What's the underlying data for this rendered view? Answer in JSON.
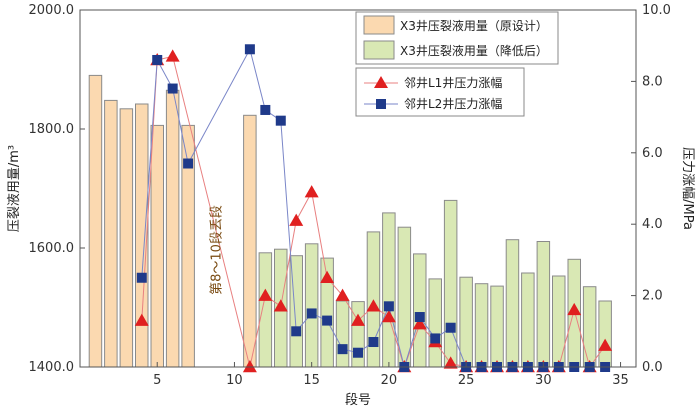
{
  "chart_data": {
    "type": "bar",
    "xlabel": "段号",
    "ylabel_left": "压裂液用量/m³",
    "ylabel_right": "压力涨幅/MPa",
    "x_range": [
      0,
      36
    ],
    "x_ticks": [
      5,
      10,
      15,
      20,
      25,
      30,
      35
    ],
    "x_tick_labels": [
      "5",
      "10",
      "15",
      "20",
      "25",
      "30",
      "35"
    ],
    "y_left_range": [
      1400,
      2000
    ],
    "y_left_ticks": [
      1400,
      1600,
      1800,
      2000
    ],
    "y_left_tick_labels": [
      "1400.0",
      "1600.0",
      "1800.0",
      "2000.0"
    ],
    "y_right_range": [
      0,
      10
    ],
    "y_right_ticks": [
      0,
      2,
      4,
      6,
      8,
      10
    ],
    "y_right_tick_labels": [
      "0.0",
      "2.0",
      "4.0",
      "6.0",
      "8.0",
      "10.0"
    ],
    "colors": {
      "original": "#fbd9b0",
      "reduced": "#d9e8b4",
      "bar_stroke": "#8a8a8a",
      "L1": "#e02020",
      "L1_line": "#e88080",
      "L2": "#1f3a8a",
      "L2_line": "#7a86c8"
    },
    "series": [
      {
        "name": "X3井压裂液用量（原设计）",
        "axis": "left",
        "kind": "bar",
        "x": [
          1,
          2,
          3,
          4,
          5,
          6,
          7,
          11
        ],
        "values": [
          1890,
          1848,
          1834,
          1842,
          1806,
          1865,
          1806,
          1823
        ]
      },
      {
        "name": "X3井压裂液用量（降低后）",
        "axis": "left",
        "kind": "bar",
        "x": [
          12,
          13,
          14,
          15,
          16,
          17,
          18,
          19,
          20,
          21,
          22,
          23,
          24,
          25,
          26,
          27,
          28,
          29,
          30,
          31,
          32,
          33,
          34
        ],
        "values": [
          1592,
          1598,
          1587,
          1607,
          1583,
          1511,
          1510,
          1627,
          1659,
          1635,
          1590,
          1548,
          1680,
          1551,
          1540,
          1536,
          1614,
          1558,
          1611,
          1553,
          1581,
          1535,
          1511
        ]
      },
      {
        "name": "邻井L1井压力涨幅",
        "axis": "right",
        "kind": "line-marker",
        "marker": "triangle",
        "x": [
          4,
          5,
          6,
          11,
          12,
          13,
          14,
          15,
          16,
          17,
          18,
          19,
          20,
          21,
          22,
          23,
          24,
          25,
          26,
          27,
          28,
          29,
          30,
          31,
          32,
          33,
          34
        ],
        "values": [
          1.3,
          8.6,
          8.7,
          0,
          2.0,
          1.7,
          4.1,
          4.9,
          2.5,
          2.0,
          1.3,
          1.7,
          1.4,
          0,
          1.2,
          0.7,
          0.1,
          0,
          0,
          0,
          0,
          0,
          0,
          0,
          1.6,
          0,
          0.6
        ]
      },
      {
        "name": "邻井L2井压力涨幅",
        "axis": "right",
        "kind": "line-marker",
        "marker": "square",
        "x": [
          4,
          5,
          6,
          7,
          11,
          12,
          13,
          14,
          15,
          16,
          17,
          18,
          19,
          20,
          21,
          22,
          23,
          24,
          25,
          26,
          27,
          28,
          29,
          30,
          31,
          32,
          33,
          34
        ],
        "values": [
          2.5,
          8.6,
          7.8,
          5.7,
          8.9,
          7.2,
          6.9,
          1.0,
          1.5,
          1.3,
          0.5,
          0.4,
          0.7,
          1.7,
          0,
          1.4,
          0.8,
          1.1,
          0,
          0,
          0,
          0,
          0,
          0,
          0,
          0,
          0,
          0
        ]
      }
    ],
    "annotation": "第8～10段丢段",
    "legend_placement": "top-right"
  }
}
